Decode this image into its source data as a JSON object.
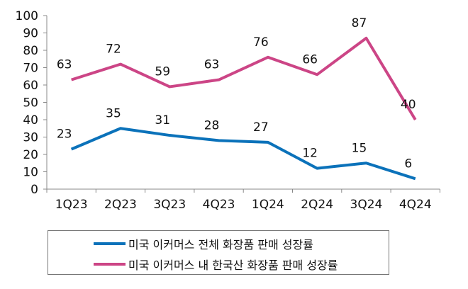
{
  "chart_data": {
    "type": "line",
    "title": "",
    "xlabel": "",
    "ylabel": "",
    "categories": [
      "1Q23",
      "2Q23",
      "3Q23",
      "4Q23",
      "1Q24",
      "2Q24",
      "3Q24",
      "4Q24"
    ],
    "ylim": [
      0,
      100
    ],
    "yticks": [
      0,
      10,
      20,
      30,
      40,
      50,
      60,
      70,
      80,
      90,
      100
    ],
    "grid": false,
    "legend_position": "bottom",
    "series": [
      {
        "name": "미국 이커머스 전체 화장품 판매 성장률",
        "color": "#0B72BA",
        "values": [
          23,
          35,
          31,
          28,
          27,
          12,
          15,
          6
        ]
      },
      {
        "name": "미국 이커머스 내 한국산 화장품 판매 성장률",
        "color": "#CC4586",
        "values": [
          63,
          72,
          59,
          63,
          76,
          66,
          87,
          40
        ]
      }
    ]
  }
}
